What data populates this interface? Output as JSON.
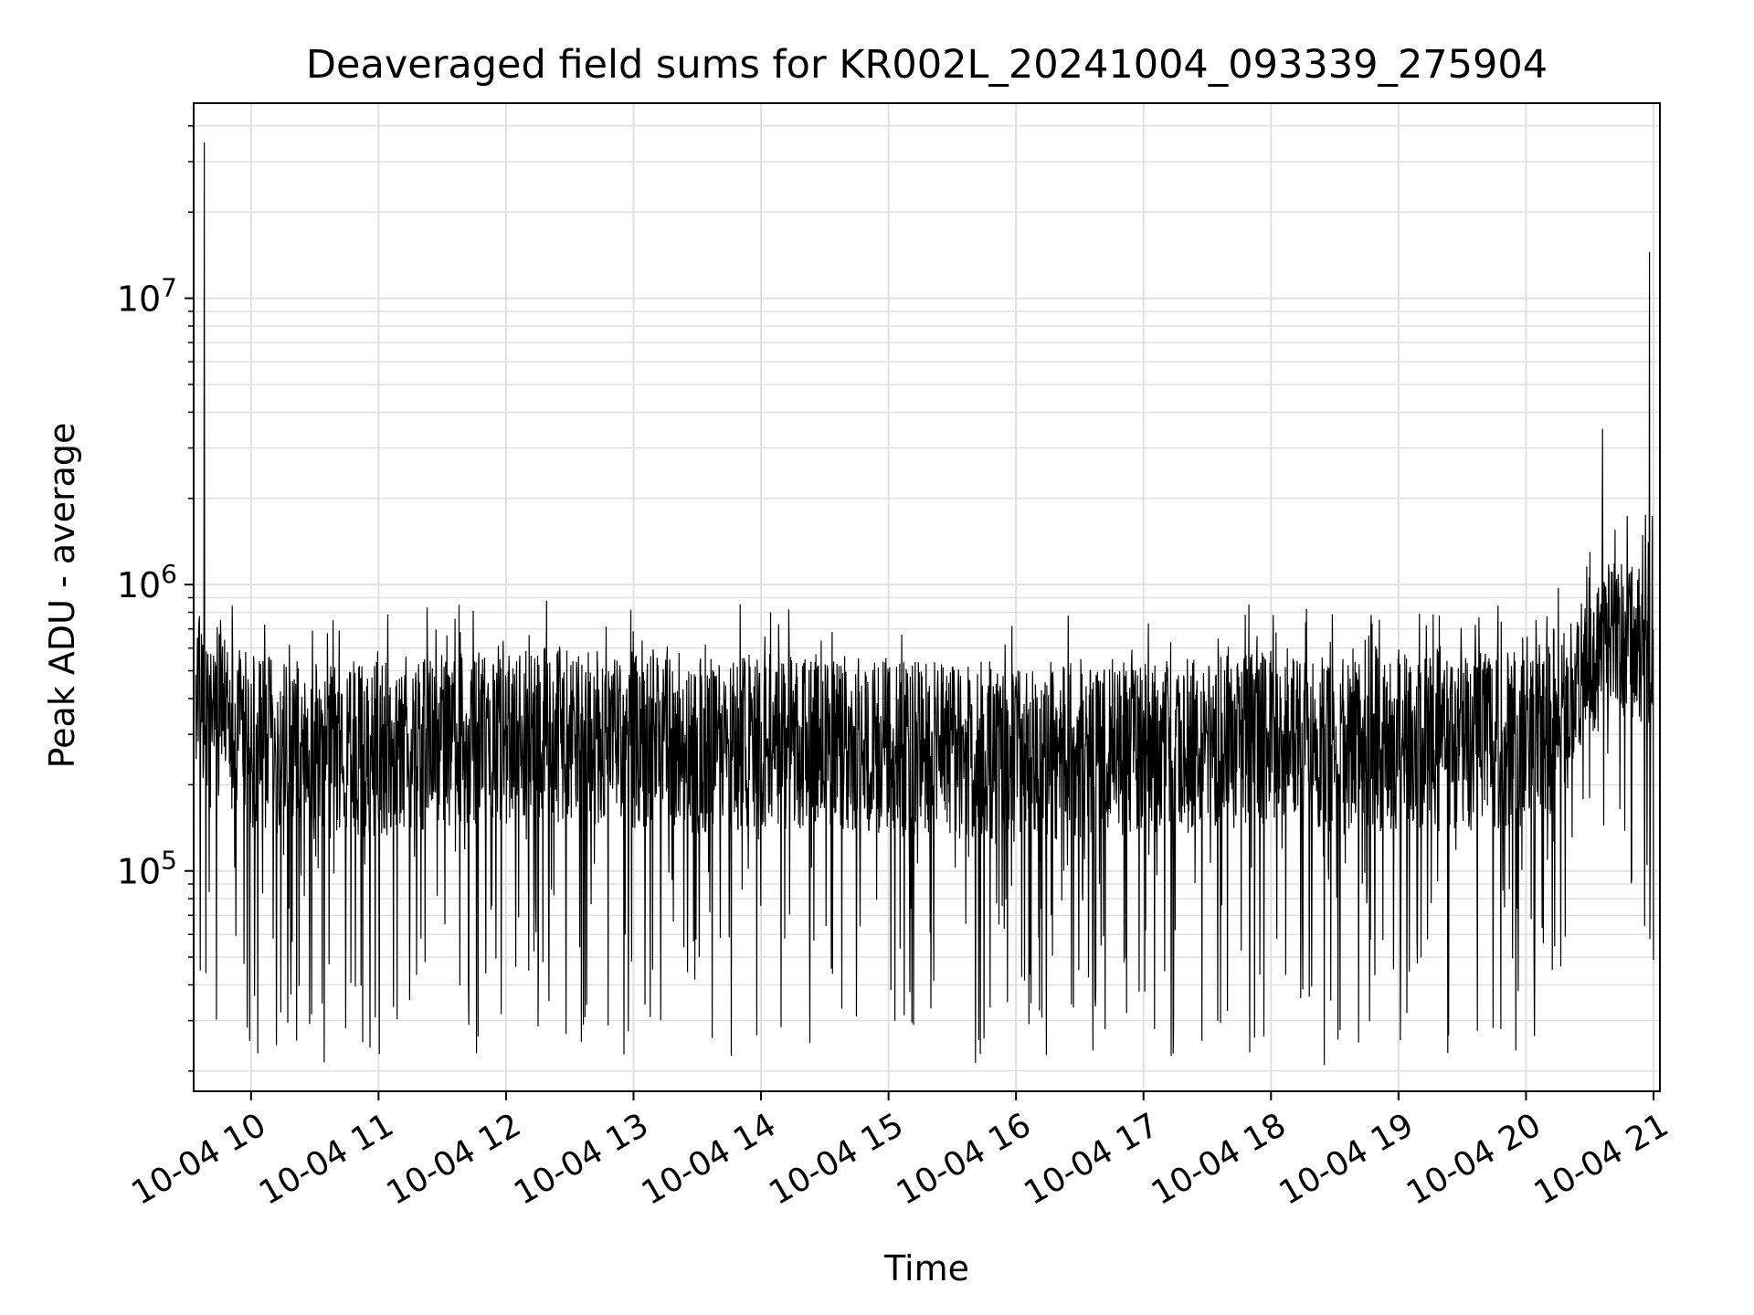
{
  "chart_data": {
    "type": "line",
    "title": "Deaveraged field sums for KR002L_20241004_093339_275904",
    "xlabel": "Time",
    "ylabel": "Peak ADU - average",
    "x_ticks": [
      "10-04 10",
      "10-04 11",
      "10-04 12",
      "10-04 13",
      "10-04 14",
      "10-04 15",
      "10-04 16",
      "10-04 17",
      "10-04 18",
      "10-04 19",
      "10-04 20",
      "10-04 21"
    ],
    "y_ticks": [
      {
        "base": "10",
        "exp": "5",
        "value": 100000
      },
      {
        "base": "10",
        "exp": "6",
        "value": 1000000
      },
      {
        "base": "10",
        "exp": "7",
        "value": 10000000
      }
    ],
    "xlim": [
      "2024-10-04 09:33",
      "2024-10-04 21:03"
    ],
    "ylim": [
      17000,
      48000000
    ],
    "yscale": "log",
    "grid": true,
    "line_color": "#000000",
    "grid_color": "#e0e0e0",
    "series": [
      {
        "x": [
          "2024-10-04 09:34",
          "2024-10-04 09:40",
          "2024-10-04 09:50",
          "2024-10-04 10:00",
          "2024-10-04 10:30",
          "2024-10-04 11:00",
          "2024-10-04 11:30",
          "2024-10-04 12:00",
          "2024-10-04 12:30",
          "2024-10-04 13:00",
          "2024-10-04 13:30",
          "2024-10-04 14:00",
          "2024-10-04 14:30",
          "2024-10-04 15:00",
          "2024-10-04 15:30",
          "2024-10-04 16:00",
          "2024-10-04 16:30",
          "2024-10-04 17:00",
          "2024-10-04 17:30",
          "2024-10-04 18:00",
          "2024-10-04 18:30",
          "2024-10-04 19:00",
          "2024-10-04 19:30",
          "2024-10-04 20:00",
          "2024-10-04 20:20",
          "2024-10-04 20:40",
          "2024-10-04 21:00"
        ],
        "y": [
          450000,
          400000,
          300000,
          280000,
          260000,
          270000,
          280000,
          290000,
          300000,
          280000,
          270000,
          290000,
          280000,
          270000,
          260000,
          250000,
          260000,
          270000,
          280000,
          290000,
          270000,
          280000,
          280000,
          290000,
          350000,
          650000,
          600000
        ],
        "peaks": [
          {
            "x": "2024-10-04 09:38",
            "y": 35000000
          },
          {
            "x": "2024-10-04 20:58",
            "y": 14500000
          },
          {
            "x": "2024-10-04 20:36",
            "y": 3500000
          }
        ],
        "troughs": [
          {
            "x": "2024-10-04 17:14",
            "y": 23000
          },
          {
            "x": "2024-10-04 18:25",
            "y": 21000
          },
          {
            "x": "2024-10-04 16:42",
            "y": 28000
          },
          {
            "x": "2024-10-04 15:03",
            "y": 30000
          }
        ]
      }
    ]
  }
}
